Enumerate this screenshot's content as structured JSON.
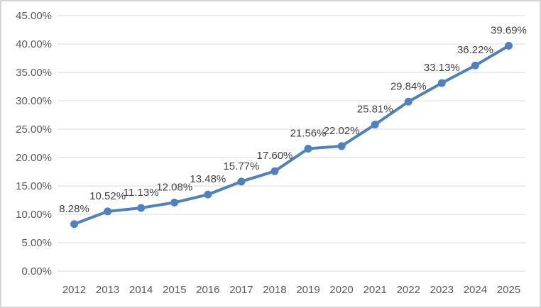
{
  "chart_data": {
    "type": "line",
    "title": "",
    "xlabel": "",
    "ylabel": "",
    "categories": [
      "2012",
      "2013",
      "2014",
      "2015",
      "2016",
      "2017",
      "2018",
      "2019",
      "2020",
      "2021",
      "2022",
      "2023",
      "2024",
      "2025"
    ],
    "series": [
      {
        "name": "",
        "values": [
          8.28,
          10.52,
          11.13,
          12.08,
          13.48,
          15.77,
          17.6,
          21.56,
          22.02,
          25.81,
          29.84,
          33.13,
          36.22,
          39.69
        ],
        "labels": [
          "8.28%",
          "10.52%",
          "11.13%",
          "12.08%",
          "13.48%",
          "15.77%",
          "17.60%",
          "21.56%",
          "22.02%",
          "25.81%",
          "29.84%",
          "33.13%",
          "36.22%",
          "39.69%"
        ]
      }
    ],
    "ylim": [
      0,
      45
    ],
    "ytick_step": 5,
    "ytick_labels": [
      "0.00%",
      "5.00%",
      "10.00%",
      "15.00%",
      "20.00%",
      "25.00%",
      "30.00%",
      "35.00%",
      "40.00%",
      "45.00%"
    ],
    "grid": true,
    "legend": false,
    "colors": {
      "line": "#4F81BD",
      "marker": "#4F81BD",
      "data_label": "#404040",
      "axis_label": "#595959",
      "gridline": "#D9D9D9",
      "background": "#FFFFFF",
      "border": "#D5D5D5"
    }
  }
}
